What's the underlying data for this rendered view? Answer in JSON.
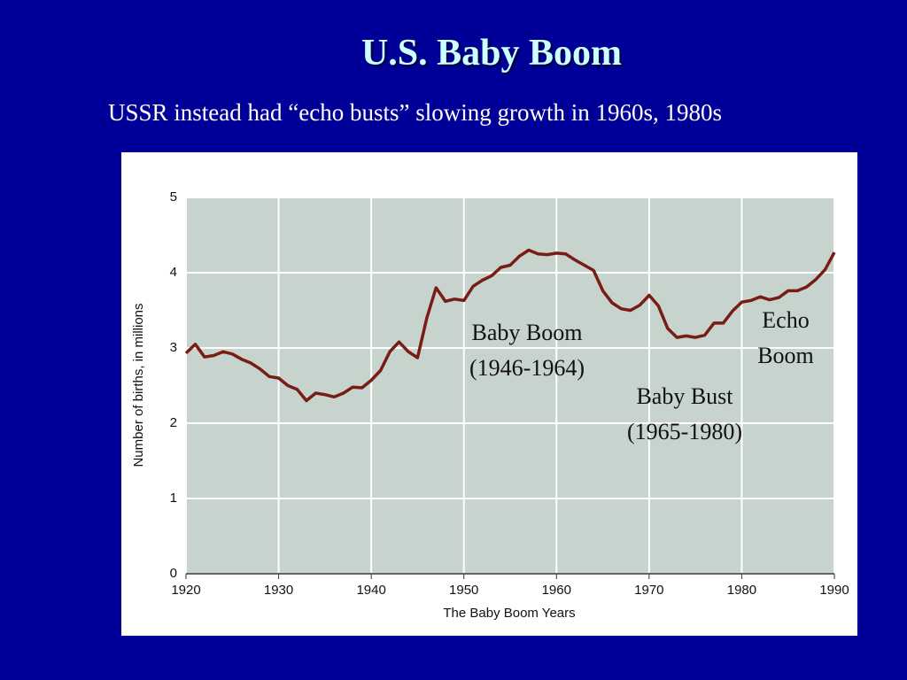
{
  "chart_data": {
    "type": "line",
    "title": "U.S. Baby Boom",
    "subtitle": "USSR instead had “echo busts” slowing growth in 1960s, 1980s",
    "x_label": "The Baby Boom Years",
    "y_label": "Number of births, in millions",
    "x": [
      1920,
      1921,
      1922,
      1923,
      1924,
      1925,
      1926,
      1927,
      1928,
      1929,
      1930,
      1931,
      1932,
      1933,
      1934,
      1935,
      1936,
      1937,
      1938,
      1939,
      1940,
      1941,
      1942,
      1943,
      1944,
      1945,
      1946,
      1947,
      1948,
      1949,
      1950,
      1951,
      1952,
      1953,
      1954,
      1955,
      1956,
      1957,
      1958,
      1959,
      1960,
      1961,
      1962,
      1963,
      1964,
      1965,
      1966,
      1967,
      1968,
      1969,
      1970,
      1971,
      1972,
      1973,
      1974,
      1975,
      1976,
      1977,
      1978,
      1979,
      1980,
      1981,
      1982,
      1983,
      1984,
      1985,
      1986,
      1987,
      1988,
      1989,
      1990
    ],
    "values": [
      2.93,
      3.05,
      2.88,
      2.9,
      2.95,
      2.92,
      2.85,
      2.8,
      2.72,
      2.62,
      2.6,
      2.5,
      2.45,
      2.3,
      2.4,
      2.38,
      2.35,
      2.4,
      2.48,
      2.47,
      2.57,
      2.7,
      2.95,
      3.08,
      2.95,
      2.87,
      3.4,
      3.8,
      3.62,
      3.65,
      3.63,
      3.82,
      3.9,
      3.96,
      4.07,
      4.1,
      4.22,
      4.3,
      4.25,
      4.24,
      4.26,
      4.25,
      4.17,
      4.1,
      4.03,
      3.76,
      3.6,
      3.52,
      3.5,
      3.57,
      3.7,
      3.56,
      3.26,
      3.14,
      3.16,
      3.14,
      3.17,
      3.33,
      3.33,
      3.49,
      3.61,
      3.63,
      3.68,
      3.64,
      3.67,
      3.76,
      3.76,
      3.81,
      3.91,
      4.04,
      4.27
    ],
    "color": "#7a1c16",
    "xlim": [
      1920,
      1990
    ],
    "xticks": [
      1920,
      1930,
      1940,
      1950,
      1960,
      1970,
      1980,
      1990
    ],
    "ylim": [
      0,
      5
    ],
    "yticks": [
      0,
      1,
      2,
      3,
      4,
      5
    ],
    "grid": true,
    "annotations": [
      {
        "lines": [
          "Baby Boom",
          "(1946-1964)"
        ]
      },
      {
        "lines": [
          "Baby Bust",
          "(1965-1980)"
        ]
      },
      {
        "lines": [
          "Echo",
          "Boom"
        ]
      }
    ]
  }
}
